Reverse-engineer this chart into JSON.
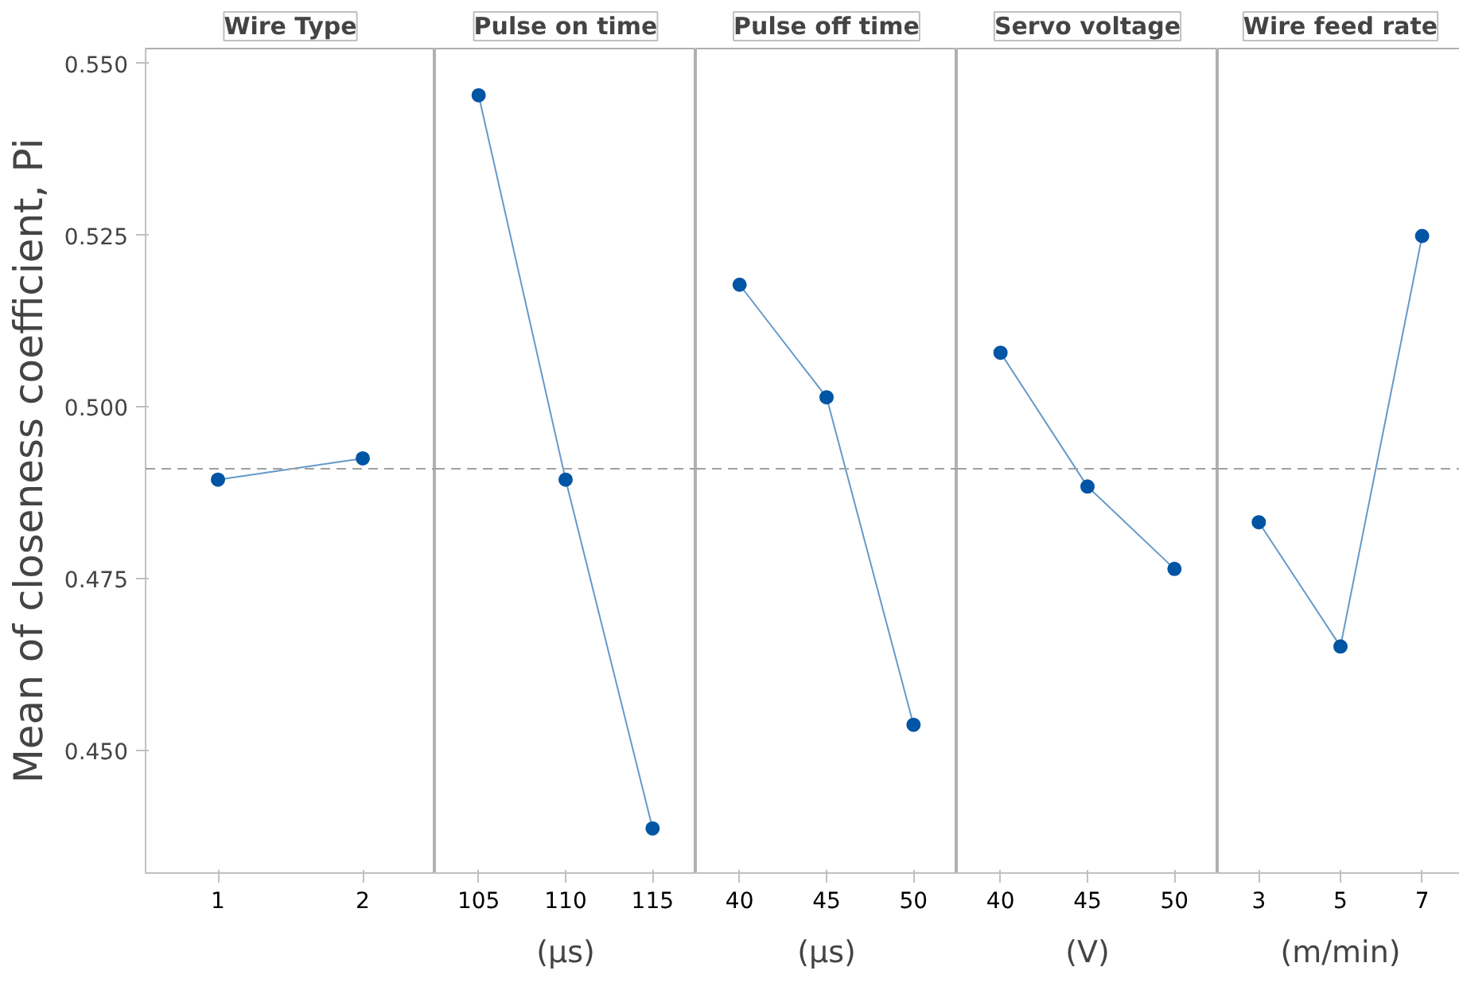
{
  "chart_data": [
    {
      "type": "line",
      "title": "Wire Type",
      "ylabel": "Mean of closeness coefficient, Pi",
      "categories": [
        "1",
        "2"
      ],
      "series": [
        {
          "color": "#0055a5",
          "values": [
            0.4894,
            0.4925
          ]
        }
      ],
      "ylim": [
        0.4321,
        0.5522
      ],
      "yticks": [
        {
          "value": 0.45,
          "label": "0.450"
        },
        {
          "value": 0.475,
          "label": "0.475"
        },
        {
          "value": 0.5,
          "label": "0.500"
        },
        {
          "value": 0.525,
          "label": "0.525"
        },
        {
          "value": 0.55,
          "label": "0.550"
        }
      ],
      "marker": "circle",
      "grid": false,
      "ref_lines": [
        {
          "axis": "y",
          "value": 0.491,
          "color": "#a0a0a0",
          "line_style": "dashed"
        }
      ]
    },
    {
      "type": "line",
      "title": "Pulse on time",
      "xlabel": "(µs)",
      "categories": [
        "105",
        "110",
        "115"
      ],
      "series": [
        {
          "color": "#0055a5",
          "values": [
            0.5454,
            0.4894,
            0.4386
          ]
        }
      ],
      "ylim": [
        0.4321,
        0.5522
      ],
      "tick_labels": "x",
      "marker": "circle",
      "grid": false,
      "ref_lines": [
        {
          "axis": "y",
          "value": 0.491,
          "color": "#a0a0a0",
          "line_style": "dashed"
        }
      ]
    },
    {
      "type": "line",
      "title": "Pulse off time",
      "xlabel": "(µs)",
      "categories": [
        "40",
        "45",
        "50"
      ],
      "series": [
        {
          "color": "#0055a5",
          "values": [
            0.5178,
            0.5014,
            0.4537
          ]
        }
      ],
      "ylim": [
        0.4321,
        0.5522
      ],
      "tick_labels": "x",
      "marker": "circle",
      "grid": false,
      "ref_lines": [
        {
          "axis": "y",
          "value": 0.491,
          "color": "#a0a0a0",
          "line_style": "dashed"
        }
      ]
    },
    {
      "type": "line",
      "title": "Servo voltage",
      "xlabel": "(V)",
      "categories": [
        "40",
        "45",
        "50"
      ],
      "series": [
        {
          "color": "#0055a5",
          "values": [
            0.5079,
            0.4884,
            0.4764
          ]
        }
      ],
      "ylim": [
        0.4321,
        0.5522
      ],
      "tick_labels": "x",
      "marker": "circle",
      "grid": false,
      "ref_lines": [
        {
          "axis": "y",
          "value": 0.491,
          "color": "#a0a0a0",
          "line_style": "dashed"
        }
      ]
    },
    {
      "type": "line",
      "title": "Wire feed rate",
      "xlabel": "(m/min)",
      "categories": [
        "3",
        "5",
        "7"
      ],
      "series": [
        {
          "color": "#0055a5",
          "values": [
            0.4832,
            0.4651,
            0.5249
          ]
        }
      ],
      "ylim": [
        0.4321,
        0.5522
      ],
      "tick_labels": "x",
      "marker": "circle",
      "grid": false,
      "ref_lines": [
        {
          "axis": "y",
          "value": 0.491,
          "color": "#a0a0a0",
          "line_style": "dashed"
        }
      ]
    }
  ]
}
